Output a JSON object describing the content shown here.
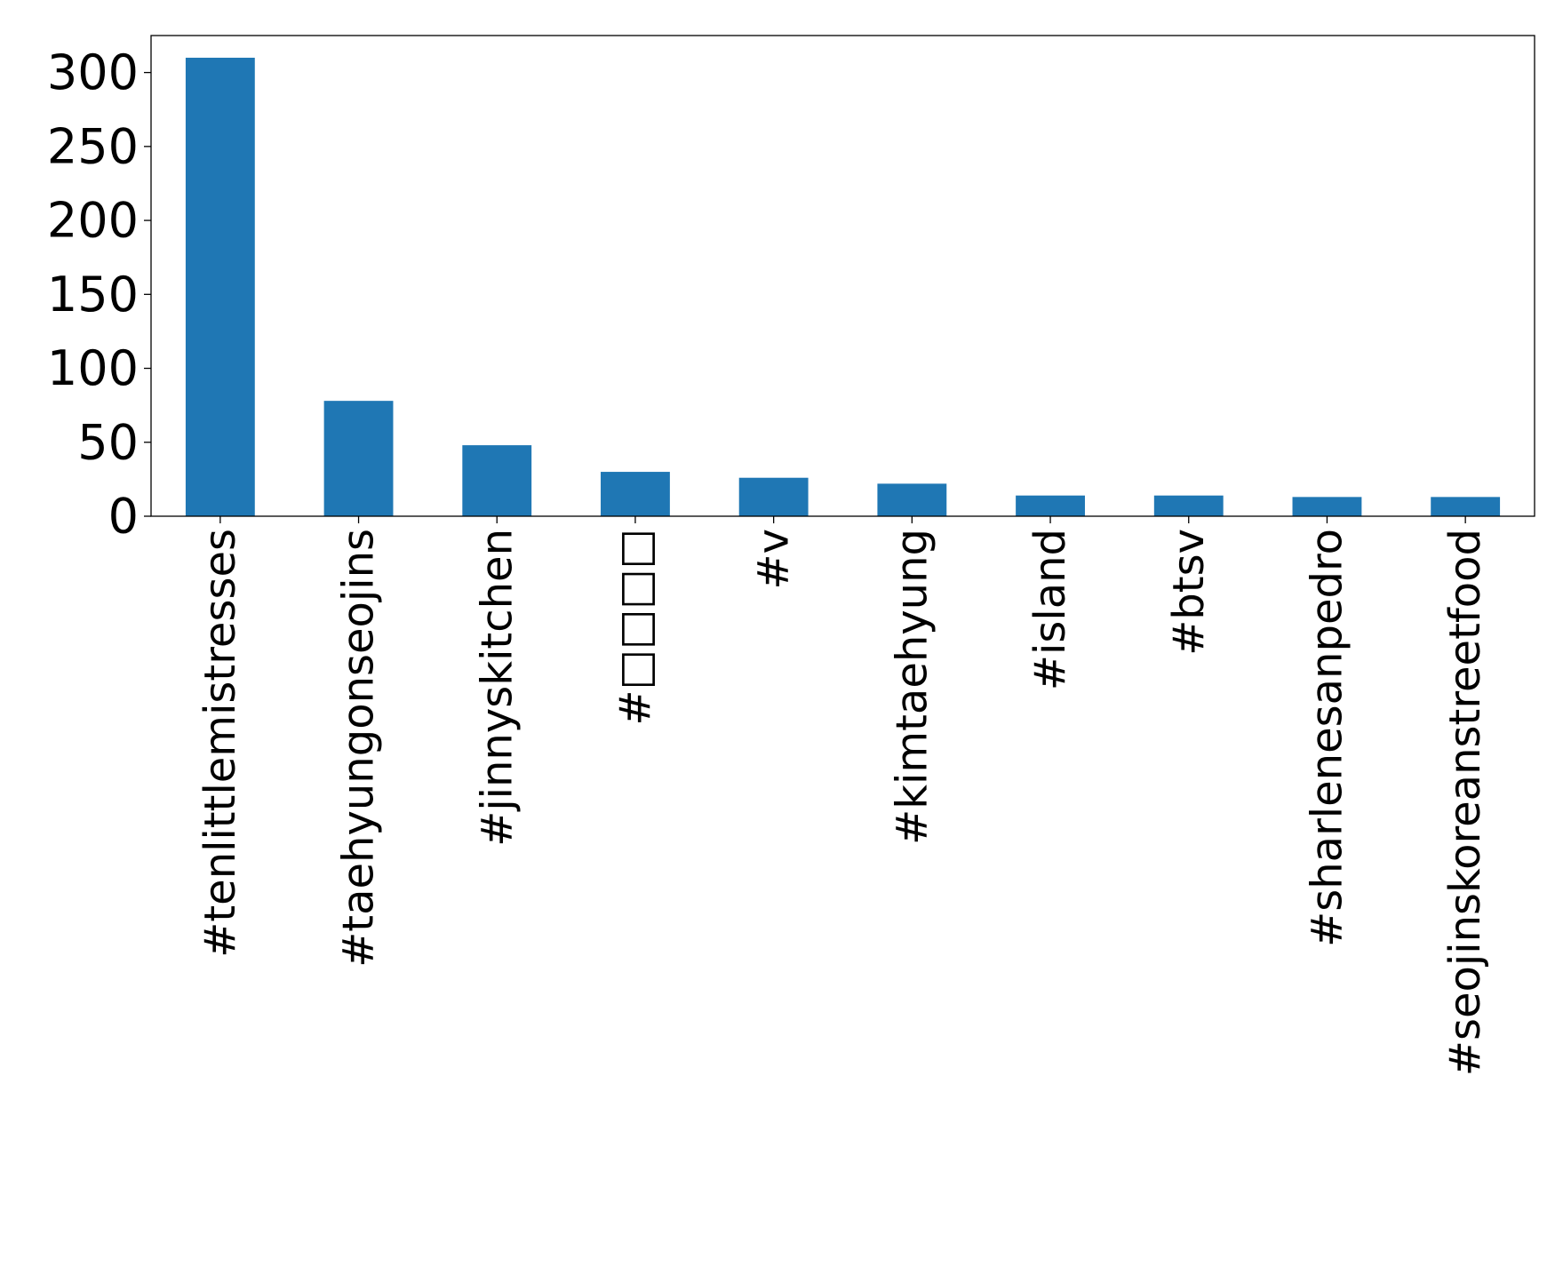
{
  "chart_data": {
    "type": "bar",
    "title": "",
    "xlabel": "",
    "ylabel": "",
    "categories": [
      "#tenlittlemistresses",
      "#taehyungonseojins",
      "#jinnyskitchen",
      "#□□□□",
      "#v",
      "#kimtaehyung",
      "#island",
      "#btsv",
      "#sharlenesanpedro",
      "#seojinskoreanstreetfood"
    ],
    "values": [
      310,
      78,
      48,
      30,
      26,
      22,
      14,
      14,
      13,
      13
    ],
    "yticks": [
      0,
      50,
      100,
      150,
      200,
      250,
      300
    ],
    "ylim": [
      0,
      325
    ],
    "bar_color": "#1f77b4",
    "grid": false,
    "legend": "none"
  }
}
